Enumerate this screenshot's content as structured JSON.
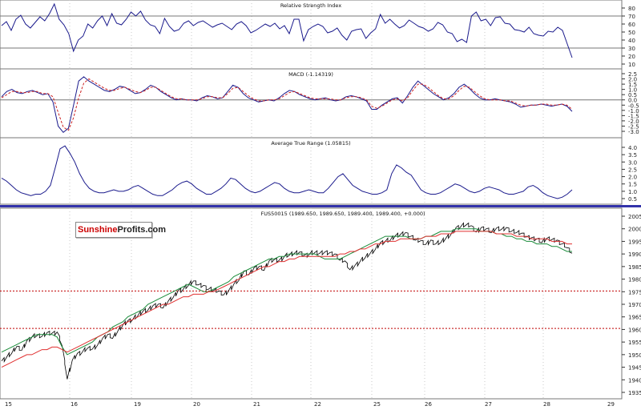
{
  "brand": {
    "part1": "Sunshine",
    "part2": "Profits.com"
  },
  "colors": {
    "rsi": "#1a1a8c",
    "macd": "#1a1a8c",
    "signal": "#cc2222",
    "atr": "#1a1a8c",
    "price": "#000000",
    "ma_short": "#1a8c3a",
    "ma_long": "#e03030",
    "support": "#c00000",
    "separator": "#3333aa",
    "grid": "#c8c8c8"
  },
  "chart_data": [
    {
      "type": "line",
      "title": "Relative Strength Index",
      "ylim": [
        10,
        80
      ],
      "yticks": [
        "80",
        "70",
        "60",
        "50",
        "40",
        "30",
        "20",
        "10"
      ],
      "reference_lines": [
        70,
        30
      ],
      "series": [
        {
          "values": [
            58,
            63,
            52,
            66,
            71,
            60,
            55,
            62,
            69,
            64,
            73,
            85,
            66,
            59,
            48,
            26,
            40,
            45,
            60,
            55,
            64,
            70,
            58,
            73,
            61,
            59,
            66,
            75,
            70,
            76,
            65,
            59,
            57,
            48,
            67,
            57,
            51,
            53,
            61,
            64,
            58,
            62,
            64,
            60,
            56,
            59,
            61,
            57,
            53,
            60,
            63,
            58,
            49,
            52,
            56,
            60,
            57,
            61,
            54,
            58,
            48,
            66,
            66,
            39,
            53,
            57,
            60,
            57,
            49,
            51,
            55,
            46,
            40,
            51,
            53,
            54,
            42,
            49,
            54,
            72,
            61,
            66,
            60,
            55,
            58,
            65,
            61,
            57,
            55,
            51,
            54,
            62,
            59,
            50,
            48,
            38,
            41,
            37,
            70,
            75,
            64,
            66,
            58,
            68,
            69,
            61,
            60,
            53,
            52,
            50,
            56,
            48,
            46,
            45,
            51,
            50,
            56,
            52,
            35,
            18
          ]
        }
      ]
    },
    {
      "type": "line",
      "title": "MACD (-1.14319)",
      "ylim": [
        -3.0,
        2.5
      ],
      "yticks": [
        "2.5",
        "2.0",
        "1.5",
        "1.0",
        "0.5",
        "0.0",
        "-0.5",
        "-1.0",
        "-1.5",
        "-2.0",
        "-2.5",
        "-3.0"
      ],
      "reference_lines": [
        0
      ],
      "series": [
        {
          "name": "MACD",
          "values": [
            0.3,
            0.8,
            1.0,
            0.7,
            0.6,
            0.8,
            0.9,
            0.7,
            0.5,
            0.6,
            -0.2,
            -2.5,
            -3.1,
            -2.7,
            -0.5,
            1.8,
            2.2,
            1.8,
            1.5,
            1.2,
            0.9,
            0.8,
            1.0,
            1.3,
            1.2,
            0.9,
            0.6,
            0.7,
            1.0,
            1.4,
            1.2,
            0.8,
            0.5,
            0.2,
            0.0,
            0.1,
            0.0,
            0.0,
            -0.1,
            0.2,
            0.4,
            0.3,
            0.1,
            0.2,
            0.8,
            1.4,
            1.2,
            0.6,
            0.2,
            0.0,
            -0.2,
            -0.1,
            0.0,
            -0.1,
            0.2,
            0.6,
            0.9,
            0.8,
            0.5,
            0.3,
            0.1,
            0.0,
            0.1,
            0.2,
            0.0,
            -0.1,
            0.0,
            0.3,
            0.4,
            0.3,
            0.1,
            -0.1,
            -0.9,
            -0.9,
            -0.5,
            -0.2,
            0.1,
            0.2,
            -0.3,
            0.4,
            1.2,
            1.8,
            1.4,
            1.0,
            0.6,
            0.3,
            0.0,
            0.2,
            0.6,
            1.2,
            1.5,
            1.1,
            0.6,
            0.2,
            0.0,
            0.0,
            0.1,
            0.0,
            -0.1,
            -0.2,
            -0.4,
            -0.7,
            -0.6,
            -0.5,
            -0.5,
            -0.4,
            -0.5,
            -0.6,
            -0.5,
            -0.4,
            -0.6,
            -1.1
          ]
        },
        {
          "name": "Signal",
          "values": [
            0.2,
            0.5,
            0.8,
            0.8,
            0.7,
            0.7,
            0.8,
            0.8,
            0.6,
            0.6,
            0.3,
            -1.2,
            -2.6,
            -2.9,
            -1.7,
            0.2,
            1.6,
            2.0,
            1.7,
            1.4,
            1.1,
            0.9,
            0.9,
            1.1,
            1.2,
            1.0,
            0.8,
            0.7,
            0.9,
            1.2,
            1.2,
            0.9,
            0.6,
            0.3,
            0.1,
            0.1,
            0.0,
            0.0,
            0.0,
            0.1,
            0.3,
            0.3,
            0.2,
            0.2,
            0.6,
            1.1,
            1.2,
            0.8,
            0.4,
            0.1,
            -0.1,
            -0.1,
            0.0,
            0.0,
            0.1,
            0.4,
            0.7,
            0.8,
            0.6,
            0.4,
            0.2,
            0.1,
            0.1,
            0.1,
            0.1,
            0.0,
            0.0,
            0.2,
            0.3,
            0.3,
            0.2,
            0.0,
            -0.6,
            -0.8,
            -0.6,
            -0.3,
            0.0,
            0.1,
            -0.1,
            0.2,
            0.9,
            1.5,
            1.5,
            1.2,
            0.8,
            0.4,
            0.1,
            0.1,
            0.4,
            0.9,
            1.3,
            1.2,
            0.8,
            0.4,
            0.1,
            0.0,
            0.0,
            0.0,
            -0.1,
            -0.1,
            -0.3,
            -0.5,
            -0.6,
            -0.5,
            -0.5,
            -0.4,
            -0.4,
            -0.5,
            -0.5,
            -0.4,
            -0.5,
            -0.9
          ]
        }
      ]
    },
    {
      "type": "line",
      "title": "Average True Range (1.05815)",
      "ylim": [
        0.0,
        4.3
      ],
      "yticks": [
        "4.0",
        "3.5",
        "3.0",
        "2.5",
        "2.0",
        "1.5",
        "1.0",
        "0.5"
      ],
      "series": [
        {
          "values": [
            1.9,
            1.7,
            1.4,
            1.1,
            0.9,
            0.8,
            0.7,
            0.8,
            0.8,
            1.0,
            1.4,
            2.6,
            3.9,
            4.1,
            3.6,
            3.0,
            2.2,
            1.6,
            1.2,
            1.0,
            0.9,
            0.9,
            1.0,
            1.1,
            1.0,
            1.0,
            1.1,
            1.3,
            1.4,
            1.2,
            1.0,
            0.8,
            0.7,
            0.7,
            0.9,
            1.1,
            1.4,
            1.6,
            1.7,
            1.5,
            1.2,
            1.0,
            0.8,
            0.8,
            1.0,
            1.2,
            1.5,
            1.9,
            1.8,
            1.5,
            1.2,
            1.0,
            0.9,
            1.0,
            1.2,
            1.4,
            1.6,
            1.5,
            1.2,
            1.0,
            0.9,
            0.9,
            1.0,
            1.1,
            1.0,
            0.9,
            0.9,
            1.2,
            1.6,
            2.0,
            2.2,
            1.8,
            1.4,
            1.2,
            1.0,
            0.9,
            0.8,
            0.8,
            0.9,
            1.1,
            2.2,
            2.8,
            2.6,
            2.3,
            2.1,
            1.6,
            1.1,
            0.9,
            0.8,
            0.8,
            0.9,
            1.1,
            1.3,
            1.5,
            1.4,
            1.2,
            1.0,
            0.9,
            1.0,
            1.2,
            1.3,
            1.2,
            1.1,
            0.9,
            0.8,
            0.8,
            0.9,
            1.0,
            1.3,
            1.4,
            1.2,
            0.9,
            0.7,
            0.6,
            0.5,
            0.6,
            0.8,
            1.1
          ]
        }
      ]
    },
    {
      "type": "line",
      "title": "FUS50015 (1989.650, 1989.650, 1989.400, 1989.400, +0.000)",
      "ylim": [
        1933,
        2007
      ],
      "yticks": [
        "2005",
        "2000",
        "1995",
        "1990",
        "1985",
        "1980",
        "1975",
        "1970",
        "1965",
        "1960",
        "1955",
        "1950",
        "1945",
        "1940",
        "1935"
      ],
      "support_lines": [
        1975.3,
        1960.4
      ],
      "xticks": [
        "15",
        "16",
        "19",
        "20",
        "21",
        "22",
        "25",
        "26",
        "27",
        "28",
        "29"
      ],
      "series": [
        {
          "name": "Price",
          "values": [
            1947,
            1949,
            1951,
            1953,
            1952,
            1955,
            1957,
            1958,
            1957,
            1959,
            1958,
            1959,
            1954,
            1940,
            1948,
            1950,
            1951,
            1953,
            1952,
            1954,
            1956,
            1958,
            1957,
            1959,
            1962,
            1963,
            1964,
            1966,
            1967,
            1968,
            1969,
            1970,
            1969,
            1971,
            1973,
            1975,
            1976,
            1978,
            1979,
            1978,
            1977,
            1976,
            1976,
            1975,
            1974,
            1975,
            1978,
            1980,
            1983,
            1982,
            1984,
            1985,
            1984,
            1987,
            1988,
            1987,
            1989,
            1990,
            1990,
            1991,
            1989,
            1990,
            1991,
            1990,
            1991,
            1990,
            1990,
            1988,
            1987,
            1984,
            1985,
            1987,
            1989,
            1990,
            1992,
            1994,
            1995,
            1996,
            1997,
            1998,
            1998,
            1997,
            1996,
            1995,
            1994,
            1995,
            1994,
            1995,
            1996,
            1998,
            2000,
            2001,
            2002,
            2001,
            1999,
            2000,
            2000,
            1999,
            2000,
            2000,
            2000,
            1999,
            1999,
            1998,
            1997,
            1996,
            1996,
            1995,
            1996,
            1996,
            1995,
            1994,
            1993,
            1990
          ]
        },
        {
          "name": "MA short",
          "values": [
            1951,
            1952,
            1953,
            1954,
            1955,
            1956,
            1957,
            1958,
            1958,
            1958,
            1958,
            1957,
            1953,
            1950,
            1951,
            1952,
            1953,
            1954,
            1955,
            1957,
            1958,
            1959,
            1961,
            1962,
            1963,
            1965,
            1966,
            1967,
            1968,
            1970,
            1971,
            1972,
            1973,
            1974,
            1975,
            1976,
            1977,
            1978,
            1977,
            1976,
            1975,
            1975,
            1976,
            1977,
            1978,
            1979,
            1981,
            1982,
            1983,
            1984,
            1985,
            1986,
            1987,
            1988,
            1988,
            1989,
            1989,
            1990,
            1990,
            1990,
            1990,
            1990,
            1990,
            1989,
            1988,
            1988,
            1988,
            1988,
            1989,
            1990,
            1991,
            1992,
            1993,
            1994,
            1995,
            1996,
            1997,
            1997,
            1997,
            1997,
            1997,
            1996,
            1996,
            1996,
            1997,
            1997,
            1998,
            1999,
            1999,
            1999,
            2000,
            2000,
            2000,
            2000,
            2000,
            1999,
            1999,
            1999,
            1998,
            1998,
            1997,
            1997,
            1996,
            1996,
            1995,
            1995,
            1994,
            1994,
            1994,
            1993,
            1993,
            1992,
            1991,
            1991
          ]
        },
        {
          "name": "MA long",
          "values": [
            1945,
            1946,
            1947,
            1948,
            1949,
            1950,
            1950,
            1951,
            1952,
            1952,
            1953,
            1953,
            1952,
            1951,
            1952,
            1953,
            1954,
            1955,
            1956,
            1957,
            1958,
            1959,
            1960,
            1961,
            1962,
            1963,
            1964,
            1965,
            1966,
            1967,
            1968,
            1969,
            1970,
            1970,
            1971,
            1972,
            1973,
            1973,
            1974,
            1974,
            1974,
            1975,
            1975,
            1976,
            1977,
            1978,
            1979,
            1980,
            1981,
            1982,
            1983,
            1984,
            1985,
            1985,
            1986,
            1987,
            1987,
            1988,
            1988,
            1989,
            1989,
            1989,
            1989,
            1989,
            1989,
            1989,
            1989,
            1990,
            1990,
            1991,
            1991,
            1992,
            1992,
            1993,
            1994,
            1994,
            1995,
            1995,
            1995,
            1996,
            1996,
            1996,
            1996,
            1996,
            1997,
            1997,
            1997,
            1998,
            1998,
            1998,
            1999,
            1999,
            1999,
            1999,
            1999,
            1999,
            1999,
            1999,
            1998,
            1998,
            1998,
            1998,
            1997,
            1997,
            1997,
            1996,
            1996,
            1996,
            1996,
            1995,
            1995,
            1995,
            1994,
            1994
          ]
        }
      ]
    }
  ]
}
